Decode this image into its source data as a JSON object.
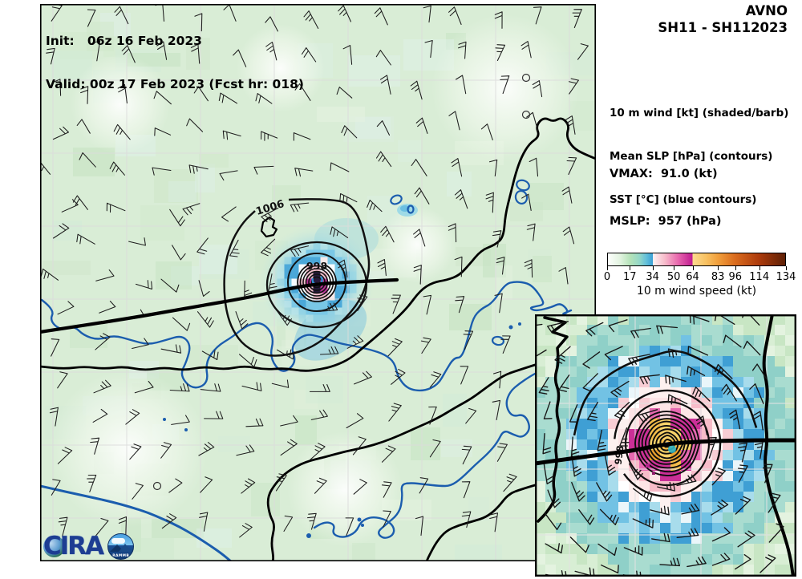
{
  "title": {
    "line1": "Init:   06z 16 Feb 2023",
    "line2": "Valid: 00z 17 Feb 2023 (Fcst hr: 018)"
  },
  "header": {
    "model": "AVNO",
    "storm": "SH11 - SH112023"
  },
  "legend": {
    "lines": [
      "10 m wind [kt] (shaded/barb)",
      "Mean SLP [hPa] (contours)",
      "SST [°C] (blue contours)"
    ]
  },
  "stats": {
    "vmax": "VMAX:  91.0 (kt)",
    "mslp": "MSLP:  957 (hPa)"
  },
  "colorbar": {
    "label": "10 m wind speed (kt)",
    "min": 0,
    "max": 134,
    "ticks": [
      0,
      17,
      34,
      50,
      64,
      83,
      96,
      114,
      134
    ],
    "gradient": [
      {
        "v": 0,
        "c": "#fdfffd"
      },
      {
        "v": 9,
        "c": "#e3f4e1"
      },
      {
        "v": 17,
        "c": "#b4e2b8"
      },
      {
        "v": 24,
        "c": "#93d7c8"
      },
      {
        "v": 29,
        "c": "#64c0da"
      },
      {
        "v": 33.9,
        "c": "#3a9fd5"
      },
      {
        "v": 34,
        "c": "#fdf2f2"
      },
      {
        "v": 43,
        "c": "#f7bccb"
      },
      {
        "v": 53,
        "c": "#e868ae"
      },
      {
        "v": 63.9,
        "c": "#bf1b91"
      },
      {
        "v": 64,
        "c": "#fcdb90"
      },
      {
        "v": 74,
        "c": "#f8c263"
      },
      {
        "v": 83,
        "c": "#f1a03d"
      },
      {
        "v": 96,
        "c": "#da6c1e"
      },
      {
        "v": 114,
        "c": "#ad3b0c"
      },
      {
        "v": 134,
        "c": "#5e2006"
      }
    ]
  },
  "map": {
    "slp_label_outer": "1006",
    "slp_label_inner": "998",
    "inset_label": "998"
  },
  "logo": {
    "name": "CIRA",
    "badge": "RAMMB"
  }
}
